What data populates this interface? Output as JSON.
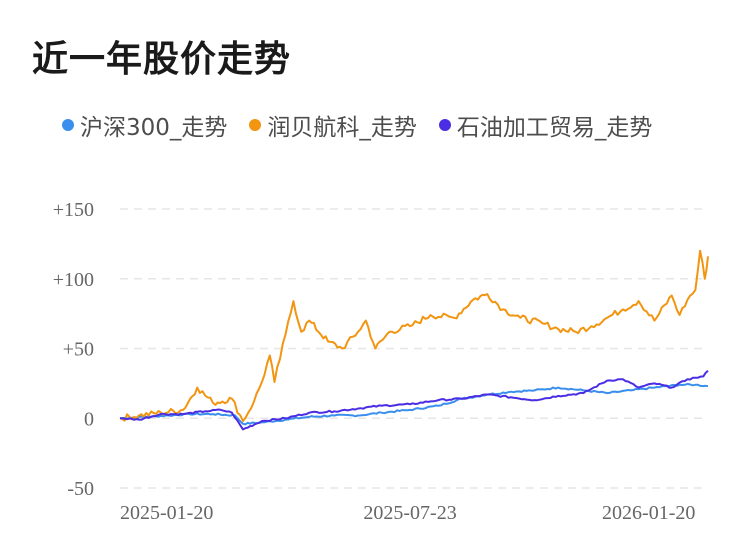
{
  "title": "近一年股价走势",
  "colors": {
    "hs300": "#3a8fec",
    "runbei": "#f29511",
    "petro": "#4b2ee3",
    "grid": "#e6e6e6"
  },
  "chart_data": {
    "type": "line",
    "title": "近一年股价走势",
    "xlabel": "",
    "ylabel": "",
    "ylim": [
      -50,
      150
    ],
    "y_ticks": [
      "+150",
      "+100",
      "+50",
      "0",
      "-50"
    ],
    "y_tick_values": [
      150,
      100,
      50,
      0,
      -50
    ],
    "x_tick_labels": [
      "2025-01-20",
      "2025-07-23",
      "2026-01-20"
    ],
    "x_range": [
      "2025-01-20",
      "2026-01-28"
    ],
    "grid": true,
    "legend_position": "top",
    "series": [
      {
        "name": "沪深300_走势",
        "color": "#3a8fec",
        "points": [
          [
            "2025-01-20",
            0
          ],
          [
            "2025-02-05",
            1
          ],
          [
            "2025-02-20",
            2
          ],
          [
            "2025-03-05",
            3
          ],
          [
            "2025-03-20",
            3
          ],
          [
            "2025-04-03",
            2
          ],
          [
            "2025-04-08",
            -4
          ],
          [
            "2025-04-20",
            -3
          ],
          [
            "2025-05-05",
            -1
          ],
          [
            "2025-05-20",
            1
          ],
          [
            "2025-06-05",
            2
          ],
          [
            "2025-06-20",
            2
          ],
          [
            "2025-07-05",
            4
          ],
          [
            "2025-07-23",
            6
          ],
          [
            "2025-08-10",
            9
          ],
          [
            "2025-08-25",
            14
          ],
          [
            "2025-09-10",
            17
          ],
          [
            "2025-09-25",
            19
          ],
          [
            "2025-10-10",
            20
          ],
          [
            "2025-10-25",
            22
          ],
          [
            "2025-11-10",
            20
          ],
          [
            "2025-11-25",
            18
          ],
          [
            "2025-12-10",
            20
          ],
          [
            "2025-12-25",
            22
          ],
          [
            "2026-01-10",
            24
          ],
          [
            "2026-01-20",
            24
          ],
          [
            "2026-01-28",
            23
          ]
        ]
      },
      {
        "name": "润贝航科_走势",
        "color": "#f29511",
        "points": [
          [
            "2025-01-20",
            0
          ],
          [
            "2025-02-01",
            2
          ],
          [
            "2025-02-15",
            4
          ],
          [
            "2025-03-01",
            6
          ],
          [
            "2025-03-10",
            22
          ],
          [
            "2025-03-20",
            11
          ],
          [
            "2025-04-01",
            14
          ],
          [
            "2025-04-08",
            -2
          ],
          [
            "2025-04-15",
            12
          ],
          [
            "2025-04-20",
            26
          ],
          [
            "2025-04-25",
            45
          ],
          [
            "2025-04-28",
            26
          ],
          [
            "2025-05-05",
            60
          ],
          [
            "2025-05-10",
            84
          ],
          [
            "2025-05-15",
            62
          ],
          [
            "2025-05-20",
            70
          ],
          [
            "2025-06-01",
            55
          ],
          [
            "2025-06-10",
            50
          ],
          [
            "2025-06-20",
            62
          ],
          [
            "2025-06-25",
            70
          ],
          [
            "2025-07-01",
            50
          ],
          [
            "2025-07-10",
            62
          ],
          [
            "2025-07-23",
            66
          ],
          [
            "2025-08-05",
            74
          ],
          [
            "2025-08-20",
            72
          ],
          [
            "2025-09-01",
            85
          ],
          [
            "2025-09-10",
            89
          ],
          [
            "2025-09-20",
            78
          ],
          [
            "2025-10-01",
            72
          ],
          [
            "2025-10-15",
            68
          ],
          [
            "2025-10-25",
            64
          ],
          [
            "2025-11-05",
            62
          ],
          [
            "2025-11-15",
            66
          ],
          [
            "2025-11-25",
            72
          ],
          [
            "2025-12-05",
            78
          ],
          [
            "2025-12-15",
            84
          ],
          [
            "2025-12-25",
            70
          ],
          [
            "2026-01-05",
            88
          ],
          [
            "2026-01-10",
            74
          ],
          [
            "2026-01-15",
            85
          ],
          [
            "2026-01-20",
            92
          ],
          [
            "2026-01-23",
            120
          ],
          [
            "2026-01-26",
            100
          ],
          [
            "2026-01-28",
            116
          ]
        ]
      },
      {
        "name": "石油加工贸易_走势",
        "color": "#4b2ee3",
        "points": [
          [
            "2025-01-20",
            0
          ],
          [
            "2025-02-01",
            -1
          ],
          [
            "2025-02-15",
            3
          ],
          [
            "2025-03-01",
            3
          ],
          [
            "2025-03-15",
            5
          ],
          [
            "2025-03-25",
            6
          ],
          [
            "2025-04-01",
            4
          ],
          [
            "2025-04-08",
            -8
          ],
          [
            "2025-04-20",
            -2
          ],
          [
            "2025-05-05",
            0
          ],
          [
            "2025-05-20",
            4
          ],
          [
            "2025-06-05",
            5
          ],
          [
            "2025-06-20",
            7
          ],
          [
            "2025-07-05",
            9
          ],
          [
            "2025-07-23",
            10
          ],
          [
            "2025-08-10",
            13
          ],
          [
            "2025-08-25",
            14
          ],
          [
            "2025-09-10",
            17
          ],
          [
            "2025-09-25",
            15
          ],
          [
            "2025-10-10",
            13
          ],
          [
            "2025-10-25",
            16
          ],
          [
            "2025-11-10",
            18
          ],
          [
            "2025-11-25",
            27
          ],
          [
            "2025-12-05",
            28
          ],
          [
            "2025-12-15",
            22
          ],
          [
            "2025-12-25",
            25
          ],
          [
            "2026-01-05",
            22
          ],
          [
            "2026-01-15",
            28
          ],
          [
            "2026-01-20",
            29
          ],
          [
            "2026-01-25",
            30
          ],
          [
            "2026-01-28",
            34
          ]
        ]
      }
    ]
  }
}
